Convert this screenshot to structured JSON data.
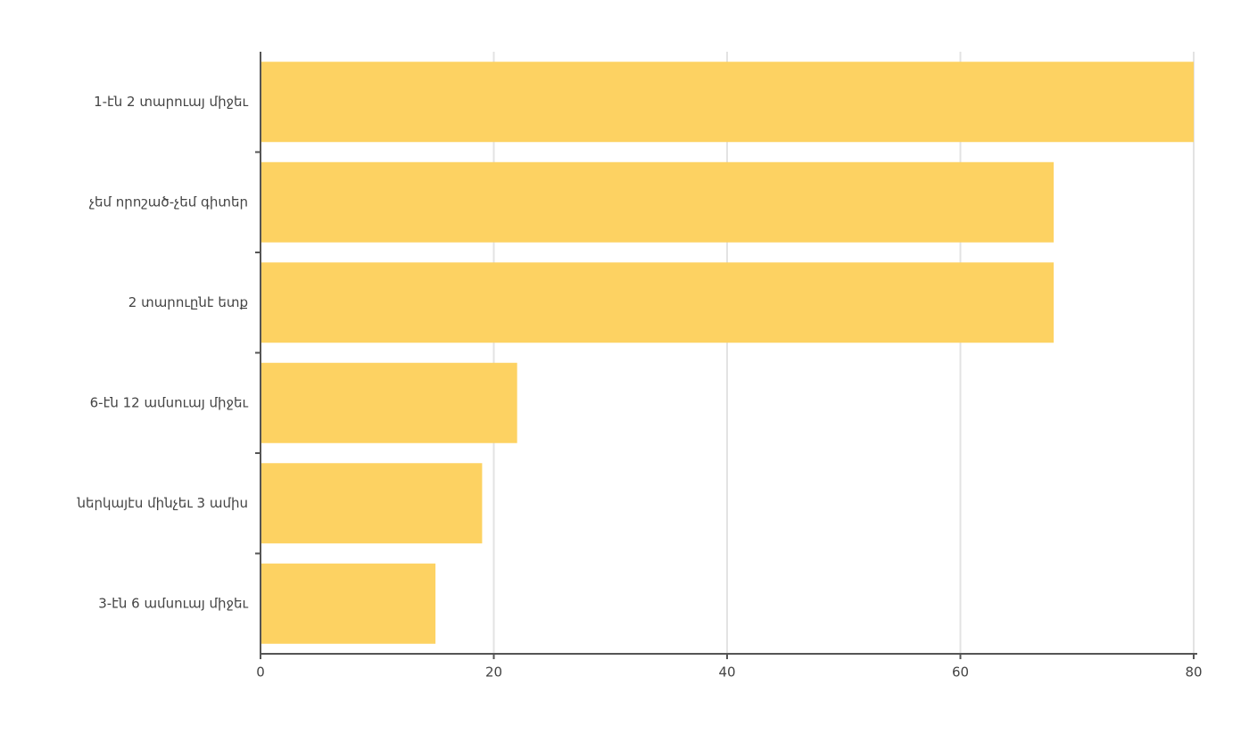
{
  "chart_data": {
    "type": "hbar",
    "categories": [
      "1-էն 2 տարուայ միջեւ",
      "չեմ որոշած-չեմ գիտեր",
      "2 տարուընէ ետք",
      "6-էն 12 ամսուայ միջեւ",
      "ներկայէս մինչեւ 3 ամիս",
      "3-էն 6 ամսուայ միջեւ"
    ],
    "values": [
      80,
      68,
      68,
      22,
      19,
      15
    ],
    "color": "#fdd262",
    "xlim": [
      0,
      80
    ],
    "xticks": [
      0,
      20,
      40,
      60,
      80
    ],
    "grid": true
  }
}
